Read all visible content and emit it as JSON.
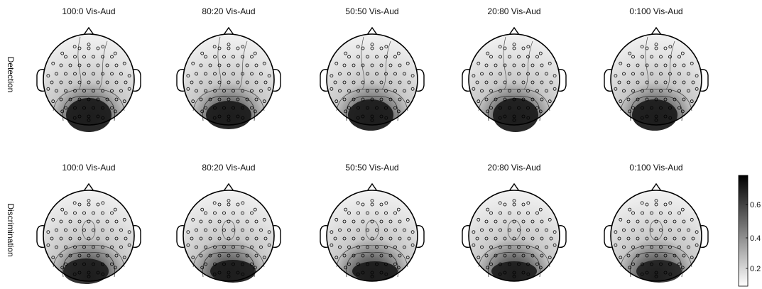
{
  "rows": [
    {
      "label": "Detection",
      "maps": [
        {
          "title": "100:0 Vis-Aud"
        },
        {
          "title": "80:20 Vis-Aud"
        },
        {
          "title": "50:50 Vis-Aud"
        },
        {
          "title": "20:80 Vis-Aud"
        },
        {
          "title": "0:100 Vis-Aud"
        }
      ]
    },
    {
      "label": "Discrimination",
      "maps": [
        {
          "title": "100:0 Vis-Aud"
        },
        {
          "title": "80:20 Vis-Aud"
        },
        {
          "title": "50:50 Vis-Aud"
        },
        {
          "title": "20:80 Vis-Aud"
        },
        {
          "title": "0:100 Vis-Aud"
        }
      ]
    }
  ],
  "colorbar": {
    "ticks": [
      "0.2",
      "0.4",
      "0.6"
    ],
    "colormap": [
      "#ffffff",
      "#000000"
    ]
  }
}
